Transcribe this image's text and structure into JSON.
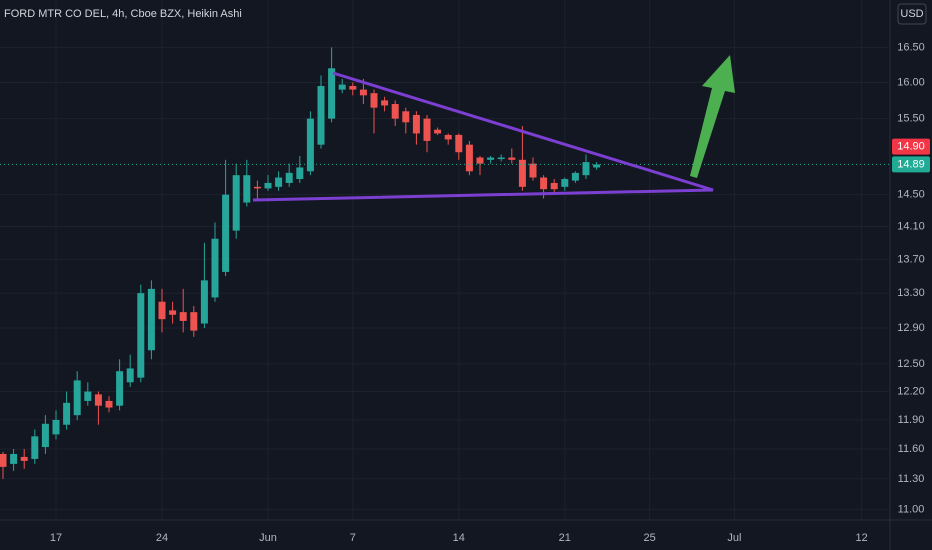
{
  "chart_data": {
    "type": "candlestick",
    "title": "FORD MTR CO DEL, 4h, Cboe BZX, Heikin Ashi",
    "currency": "USD",
    "log_scale": true,
    "up_color": "#26a69a",
    "down_color": "#ef5350",
    "categories": [
      null,
      null,
      null,
      null,
      null,
      "17",
      null,
      null,
      null,
      null,
      null,
      null,
      null,
      null,
      null,
      "24",
      null,
      null,
      null,
      null,
      null,
      null,
      null,
      null,
      null,
      "Jun",
      null,
      null,
      null,
      null,
      null,
      null,
      null,
      "7",
      null,
      null,
      null,
      null,
      null,
      null,
      null,
      null,
      null,
      "14",
      null,
      null,
      null,
      null,
      null,
      null,
      null,
      null,
      null,
      "21",
      null,
      null,
      null,
      null,
      null,
      null,
      null,
      "25",
      null,
      null,
      null,
      null,
      null,
      null,
      null,
      "Jul",
      null,
      null,
      null,
      null,
      null,
      null,
      null,
      null,
      null,
      null,
      null,
      "12",
      null,
      null
    ],
    "open": [
      11.55,
      11.45,
      11.52,
      11.5,
      11.62,
      11.75,
      11.85,
      11.95,
      12.1,
      12.17,
      12.1,
      12.05,
      12.3,
      12.35,
      12.65,
      13.2,
      13.1,
      13.08,
      13.08,
      12.95,
      13.25,
      13.55,
      14.05,
      14.4,
      14.6,
      14.58,
      14.6,
      14.65,
      14.7,
      14.8,
      15.15,
      15.5,
      15.9,
      15.95,
      15.9,
      15.85,
      15.75,
      15.7,
      15.6,
      15.55,
      15.5,
      15.35,
      15.28,
      15.28,
      15.15,
      14.98,
      14.95,
      14.96,
      14.98,
      14.95,
      14.9,
      14.72,
      14.65,
      14.6,
      14.68,
      14.75,
      14.85,
      null,
      null,
      null,
      null,
      null,
      null,
      null,
      null,
      null,
      null,
      null,
      null,
      null,
      null,
      null,
      null,
      null,
      null,
      null,
      null,
      null,
      null,
      null,
      null,
      null,
      null,
      null
    ],
    "high": [
      11.57,
      11.6,
      11.6,
      11.8,
      11.95,
      12.0,
      12.2,
      12.42,
      12.3,
      12.2,
      12.15,
      12.55,
      12.6,
      13.4,
      13.45,
      13.35,
      13.2,
      13.35,
      13.15,
      13.9,
      14.15,
      14.95,
      14.9,
      14.95,
      14.68,
      14.75,
      14.8,
      14.9,
      15.0,
      15.6,
      16.1,
      16.5,
      16.05,
      16.0,
      16.05,
      15.9,
      15.8,
      15.75,
      15.65,
      15.6,
      15.55,
      15.38,
      15.3,
      15.3,
      15.2,
      15.0,
      15.0,
      15.02,
      15.1,
      15.4,
      14.98,
      14.75,
      14.7,
      14.72,
      14.8,
      15.02,
      14.92,
      null,
      null,
      null,
      null,
      null,
      null,
      null,
      null,
      null,
      null,
      null,
      null,
      null,
      null,
      null,
      null,
      null,
      null,
      null,
      null,
      null,
      null,
      null,
      null,
      null,
      null,
      null
    ],
    "low": [
      11.3,
      11.38,
      11.4,
      11.45,
      11.55,
      11.7,
      11.8,
      11.9,
      12.05,
      11.85,
      11.98,
      12.0,
      12.25,
      12.3,
      12.55,
      12.85,
      12.95,
      12.85,
      12.8,
      12.9,
      13.2,
      13.5,
      13.95,
      14.35,
      14.45,
      14.55,
      14.55,
      14.6,
      14.65,
      14.75,
      15.1,
      15.45,
      15.85,
      15.82,
      15.7,
      15.3,
      15.6,
      15.4,
      15.3,
      15.15,
      15.05,
      15.28,
      15.15,
      14.95,
      14.75,
      14.75,
      14.9,
      14.93,
      14.9,
      14.55,
      14.68,
      14.45,
      14.5,
      14.55,
      14.65,
      14.7,
      14.82,
      null,
      null,
      null,
      null,
      null,
      null,
      null,
      null,
      null,
      null,
      null,
      null,
      null,
      null,
      null,
      null,
      null,
      null,
      null,
      null,
      null,
      null,
      null,
      null,
      null,
      null,
      null
    ],
    "close": [
      11.42,
      11.55,
      11.48,
      11.73,
      11.86,
      11.9,
      12.08,
      12.32,
      12.2,
      12.05,
      12.03,
      12.42,
      12.45,
      13.3,
      13.35,
      13.0,
      13.05,
      12.98,
      12.87,
      13.45,
      13.95,
      14.5,
      14.75,
      14.75,
      14.58,
      14.65,
      14.72,
      14.78,
      14.85,
      15.5,
      15.95,
      16.2,
      15.97,
      15.9,
      15.82,
      15.65,
      15.68,
      15.5,
      15.45,
      15.3,
      15.2,
      15.3,
      15.22,
      15.05,
      14.8,
      14.9,
      14.98,
      14.98,
      14.95,
      14.6,
      14.72,
      14.57,
      14.57,
      14.7,
      14.78,
      14.92,
      14.89,
      null,
      null,
      null,
      null,
      null,
      null,
      null,
      null,
      null,
      null,
      null,
      null,
      null,
      null,
      null,
      null,
      null,
      null,
      null,
      null,
      null,
      null,
      null,
      null,
      null,
      null,
      null
    ],
    "ylim": [
      10.9,
      17.2
    ],
    "yticks": [
      {
        "value": 11,
        "label": "11.00"
      },
      {
        "value": 11.3,
        "label": "11.30"
      },
      {
        "value": 11.6,
        "label": "11.60"
      },
      {
        "value": 11.9,
        "label": "11.90"
      },
      {
        "value": 12.2,
        "label": "12.20"
      },
      {
        "value": 12.5,
        "label": "12.50"
      },
      {
        "value": 12.9,
        "label": "12.90"
      },
      {
        "value": 13.3,
        "label": "13.30"
      },
      {
        "value": 13.7,
        "label": "13.70"
      },
      {
        "value": 14.1,
        "label": "14.10"
      },
      {
        "value": 14.5,
        "label": "14.50"
      },
      {
        "value": 15.5,
        "label": "15.50"
      },
      {
        "value": 16,
        "label": "16.00"
      },
      {
        "value": 16.5,
        "label": "16.50"
      }
    ],
    "grid": true,
    "price_tags": [
      {
        "value": 14.9,
        "label": "14.90",
        "color": "#f23645"
      },
      {
        "value": 14.89,
        "label": "14.89",
        "color": "#22ab94"
      }
    ]
  }
}
